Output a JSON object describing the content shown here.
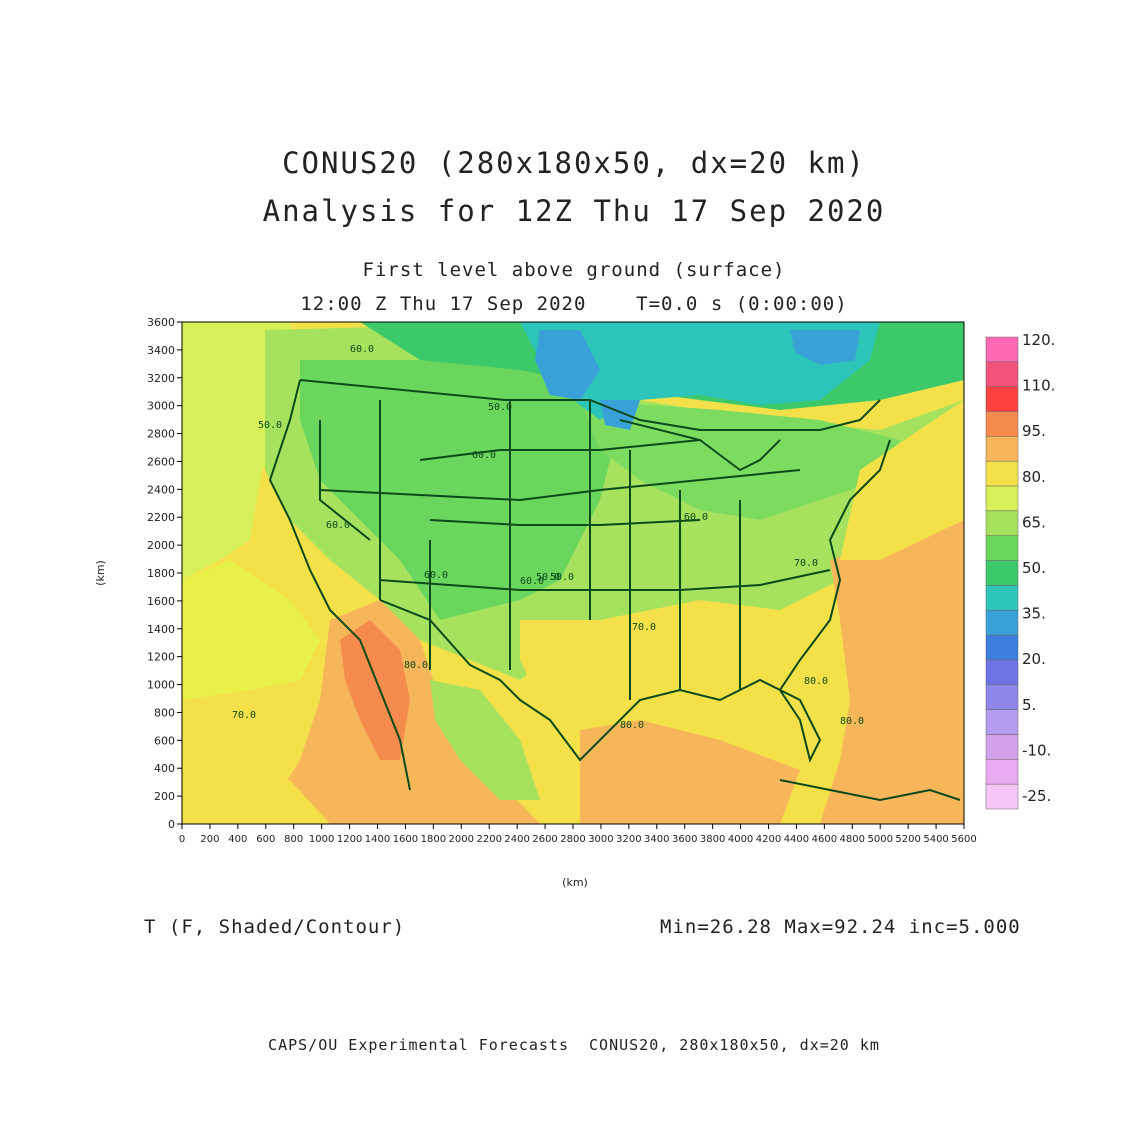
{
  "title": {
    "line1": "CONUS20 (280x180x50, dx=20 km)",
    "line2": "Analysis for 12Z Thu 17 Sep 2020",
    "level": "First level above ground (surface)",
    "time": "12:00 Z Thu 17 Sep 2020    T=0.0 s (0:00:00)"
  },
  "axes": {
    "x_label": "(km)",
    "y_label": "(km)",
    "x_ticks": [
      "0",
      "200",
      "400",
      "600",
      "800",
      "1000",
      "1200",
      "1400",
      "1600",
      "1800",
      "2000",
      "2200",
      "2400",
      "2600",
      "2800",
      "3000",
      "3200",
      "3400",
      "3600",
      "3800",
      "4000",
      "4200",
      "4400",
      "4600",
      "4800",
      "5000",
      "5200",
      "5400",
      "5600"
    ],
    "y_ticks": [
      "0",
      "200",
      "400",
      "600",
      "800",
      "1000",
      "1200",
      "1400",
      "1600",
      "1800",
      "2000",
      "2200",
      "2400",
      "2600",
      "2800",
      "3000",
      "3200",
      "3400",
      "3600"
    ],
    "x_range_km": [
      0,
      5600
    ],
    "y_range_km": [
      0,
      3600
    ]
  },
  "colorbar": {
    "labels": [
      "120.",
      "110.",
      "95.",
      "80.",
      "65.",
      "50.",
      "35.",
      "20.",
      "5.",
      "-10.",
      "-25."
    ],
    "colors": [
      "#ff69b4",
      "#f0527a",
      "#ff4040",
      "#f58c4e",
      "#f7b65a",
      "#f4e14a",
      "#d7ef58",
      "#a7e25e",
      "#6bd65e",
      "#3cc96a",
      "#2dc4b9",
      "#3aa0d8",
      "#3b7ee0",
      "#6e74e6",
      "#8f86ea",
      "#b49cf0",
      "#d3a0ec",
      "#e8aaf0",
      "#f6c6f6"
    ]
  },
  "contour_labels": [
    "60.0",
    "50.0",
    "60.0",
    "50.0",
    "60.0",
    "60.0",
    "60.0",
    "50.0",
    "50.0",
    "60.0",
    "70.0",
    "70.0",
    "80.0",
    "80.0",
    "80.0",
    "80.0",
    "70.0"
  ],
  "variable": "T (F, Shaded/Contour)",
  "stats": "Min=26.28 Max=92.24 inc=5.000",
  "footer": "CAPS/OU Experimental Forecasts  CONUS20, 280x180x50, dx=20 km",
  "colors": {
    "border": "#0b4a1a",
    "frame": "#000000"
  }
}
